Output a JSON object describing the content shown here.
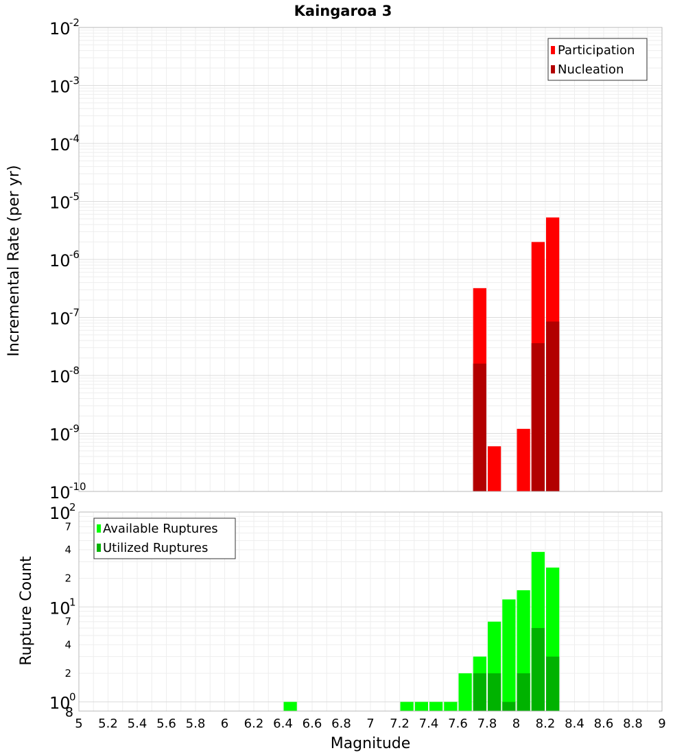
{
  "chart_data": [
    {
      "type": "bar",
      "title": "Kaingaroa 3",
      "xlabel": "",
      "ylabel": "Incremental Rate (per yr)",
      "yscale": "log",
      "ylim": [
        1e-10,
        0.01
      ],
      "xlim": [
        5,
        9
      ],
      "grid": true,
      "legend_position": "top-right",
      "bin_width": 0.1,
      "series": [
        {
          "name": "Participation",
          "color": "#ff0000",
          "x": [
            7.75,
            7.85,
            8.05,
            8.15,
            8.25
          ],
          "values": [
            3.2e-07,
            6e-10,
            1.2e-09,
            2e-06,
            5.3e-06
          ]
        },
        {
          "name": "Nucleation",
          "color": "#b20000",
          "x": [
            7.75,
            8.15,
            8.25
          ],
          "values": [
            1.6e-08,
            3.6e-08,
            8.5e-08
          ]
        }
      ]
    },
    {
      "type": "bar",
      "title": "",
      "xlabel": "Magnitude",
      "ylabel": "Rupture Count",
      "yscale": "log",
      "ylim": [
        0.8,
        100
      ],
      "xlim": [
        5,
        9
      ],
      "grid": true,
      "legend_position": "top-left",
      "bin_width": 0.1,
      "series": [
        {
          "name": "Available Ruptures",
          "color": "#00ff00",
          "x": [
            6.45,
            7.25,
            7.35,
            7.45,
            7.55,
            7.65,
            7.75,
            7.85,
            7.95,
            8.05,
            8.15,
            8.25
          ],
          "values": [
            1,
            1,
            1,
            1,
            1,
            2,
            3,
            7,
            12,
            15,
            38,
            26
          ]
        },
        {
          "name": "Utilized Ruptures",
          "color": "#00b200",
          "x": [
            7.75,
            7.85,
            7.95,
            8.05,
            8.15,
            8.25
          ],
          "values": [
            2,
            2,
            1,
            2,
            6,
            3
          ]
        }
      ],
      "x_ticks": [
        "5",
        "5.2",
        "5.4",
        "5.6",
        "5.8",
        "6",
        "6.2",
        "6.4",
        "6.6",
        "6.8",
        "7",
        "7.2",
        "7.4",
        "7.6",
        "7.8",
        "8",
        "8.2",
        "8.4",
        "8.6",
        "8.8",
        "9"
      ]
    }
  ]
}
